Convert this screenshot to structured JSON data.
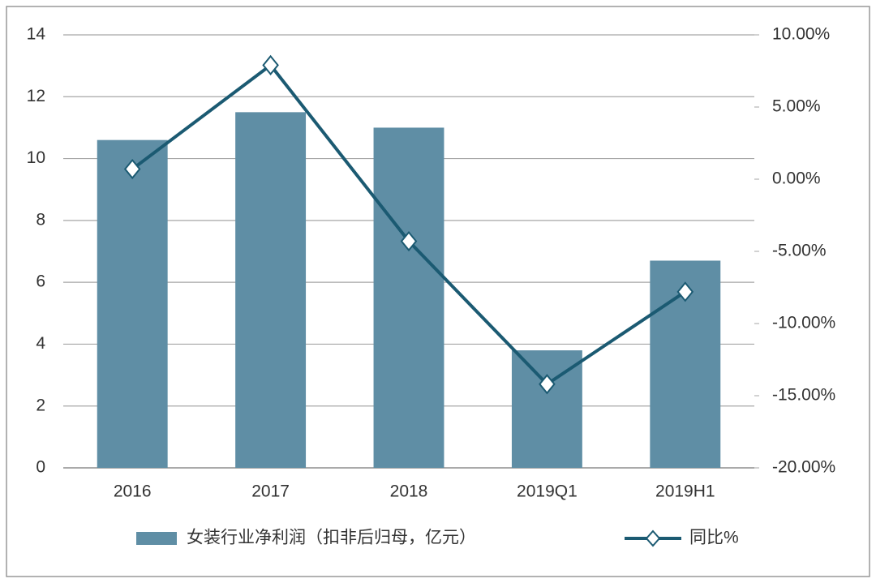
{
  "chart_data": {
    "type": "bar",
    "categories": [
      "2016",
      "2017",
      "2018",
      "2019Q1",
      "2019H1"
    ],
    "series": [
      {
        "name": "女装行业净利润（扣非后归母，亿元）",
        "type": "bar",
        "color": "#5f8ea5",
        "values": [
          10.6,
          11.5,
          11.0,
          3.8,
          6.7
        ]
      },
      {
        "name": "同比%",
        "type": "line",
        "axis": "y2",
        "color": "#1b5a72",
        "values": [
          0.7,
          7.9,
          -4.3,
          -14.2,
          -7.8
        ]
      }
    ],
    "ylim": [
      0,
      14
    ],
    "yticks": [
      0,
      2,
      4,
      6,
      8,
      10,
      12,
      14
    ],
    "y2lim": [
      -20,
      10
    ],
    "y2ticks": [
      {
        "value": -20,
        "label": "-20.00%"
      },
      {
        "value": -15,
        "label": "-15.00%"
      },
      {
        "value": -10,
        "label": "-10.00%"
      },
      {
        "value": -5,
        "label": "-5.00%"
      },
      {
        "value": 0,
        "label": "0.00%"
      },
      {
        "value": 5,
        "label": "5.00%"
      },
      {
        "value": 10,
        "label": "10.00%"
      }
    ],
    "grid": true
  }
}
